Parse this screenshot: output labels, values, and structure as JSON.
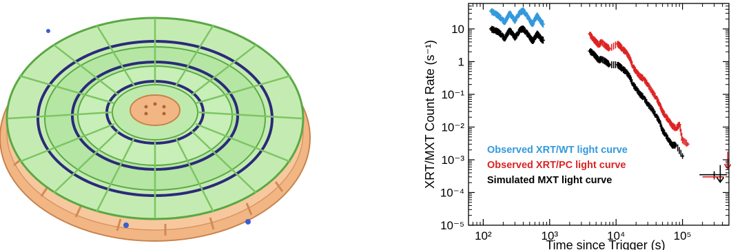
{
  "figure": {
    "left_panel": {
      "description_icon": "mirror-assembly-render"
    },
    "right_panel": {
      "ylabel_text": "XRT/MXT Count Rate (s-1)"
    }
  },
  "chart_data": {
    "type": "scatter",
    "xlabel": "Time since Trigger (s)",
    "ylabel": "XRT/MXT Count Rate (s⁻¹)",
    "xscale": "log",
    "yscale": "log",
    "xlim": [
      60,
      500000
    ],
    "ylim": [
      1e-05,
      60
    ],
    "x_ticks": [
      "10²",
      "10³",
      "10⁴",
      "10⁵"
    ],
    "y_ticks": [
      "10",
      "1",
      "10⁻¹",
      "10⁻²",
      "10⁻³",
      "10⁻⁴",
      "10⁻⁵"
    ],
    "legend": {
      "placement": "lower-left",
      "entries": [
        {
          "label": "Observed XRT/WT light curve",
          "color": "#3399dd"
        },
        {
          "label": "Observed XRT/PC light curve",
          "color": "#dd2222"
        },
        {
          "label": "Simulated MXT light curve",
          "color": "#000000"
        }
      ]
    },
    "series": [
      {
        "name": "Observed XRT/WT light curve",
        "color": "#3399dd",
        "points": [
          [
            130,
            35
          ],
          [
            150,
            30
          ],
          [
            170,
            25
          ],
          [
            190,
            20
          ],
          [
            210,
            16
          ],
          [
            230,
            22
          ],
          [
            250,
            30
          ],
          [
            270,
            24
          ],
          [
            300,
            18
          ],
          [
            330,
            25
          ],
          [
            360,
            32
          ],
          [
            400,
            36
          ],
          [
            440,
            28
          ],
          [
            480,
            22
          ],
          [
            520,
            16
          ],
          [
            560,
            14
          ],
          [
            600,
            20
          ],
          [
            650,
            25
          ],
          [
            700,
            20
          ],
          [
            750,
            16
          ],
          [
            800,
            14
          ]
        ]
      },
      {
        "name": "Observed XRT/PC light curve",
        "color": "#dd2222",
        "points": [
          [
            4000,
            7
          ],
          [
            4500,
            5
          ],
          [
            5000,
            4
          ],
          [
            5500,
            3.2
          ],
          [
            6000,
            4
          ],
          [
            7000,
            3
          ],
          [
            8000,
            2.5
          ],
          [
            10500,
            3.5
          ],
          [
            11500,
            3
          ],
          [
            12500,
            2.4
          ],
          [
            14000,
            2
          ],
          [
            16000,
            1.3
          ],
          [
            18000,
            0.7
          ],
          [
            20000,
            0.5
          ],
          [
            23000,
            0.35
          ],
          [
            26000,
            0.3
          ],
          [
            30000,
            0.2
          ],
          [
            35000,
            0.12
          ],
          [
            40000,
            0.08
          ],
          [
            45000,
            0.05
          ],
          [
            50000,
            0.03
          ],
          [
            55000,
            0.022
          ],
          [
            62000,
            0.016
          ],
          [
            70000,
            0.011
          ],
          [
            80000,
            0.009
          ],
          [
            90000,
            0.012
          ],
          [
            100000,
            0.004
          ],
          [
            120000,
            0.003
          ],
          [
            300000,
            0.0003
          ]
        ]
      },
      {
        "name": "Simulated MXT light curve",
        "color": "#000000",
        "points": [
          [
            130,
            10
          ],
          [
            150,
            9
          ],
          [
            170,
            8
          ],
          [
            190,
            6.5
          ],
          [
            210,
            5
          ],
          [
            230,
            7
          ],
          [
            250,
            9
          ],
          [
            270,
            7.5
          ],
          [
            300,
            5.5
          ],
          [
            330,
            7
          ],
          [
            360,
            9.5
          ],
          [
            400,
            10
          ],
          [
            440,
            8
          ],
          [
            480,
            6.5
          ],
          [
            520,
            5
          ],
          [
            560,
            4.2
          ],
          [
            600,
            5.5
          ],
          [
            650,
            7
          ],
          [
            700,
            6
          ],
          [
            750,
            4.8
          ],
          [
            800,
            4.5
          ],
          [
            4000,
            2.1
          ],
          [
            4500,
            1.8
          ],
          [
            5000,
            1.4
          ],
          [
            5500,
            1.1
          ],
          [
            6000,
            1.2
          ],
          [
            7000,
            1.0
          ],
          [
            8000,
            0.8
          ],
          [
            10500,
            0.8
          ],
          [
            11500,
            0.7
          ],
          [
            12500,
            0.6
          ],
          [
            14000,
            0.5
          ],
          [
            16000,
            0.35
          ],
          [
            18000,
            0.2
          ],
          [
            20000,
            0.15
          ],
          [
            23000,
            0.1
          ],
          [
            26000,
            0.08
          ],
          [
            30000,
            0.05
          ],
          [
            35000,
            0.035
          ],
          [
            40000,
            0.022
          ],
          [
            45000,
            0.015
          ],
          [
            50000,
            0.008
          ],
          [
            55000,
            0.006
          ],
          [
            62000,
            0.004
          ],
          [
            70000,
            0.0028
          ],
          [
            80000,
            0.0028
          ],
          [
            100000,
            0.0013
          ],
          [
            300000,
            0.00035
          ]
        ]
      }
    ],
    "upper_limits": [
      {
        "series": "Observed XRT/PC light curve",
        "x": 480000,
        "y": 0.0009
      },
      {
        "series": "Simulated MXT light curve",
        "x": 370000,
        "y": 0.00035
      }
    ]
  }
}
